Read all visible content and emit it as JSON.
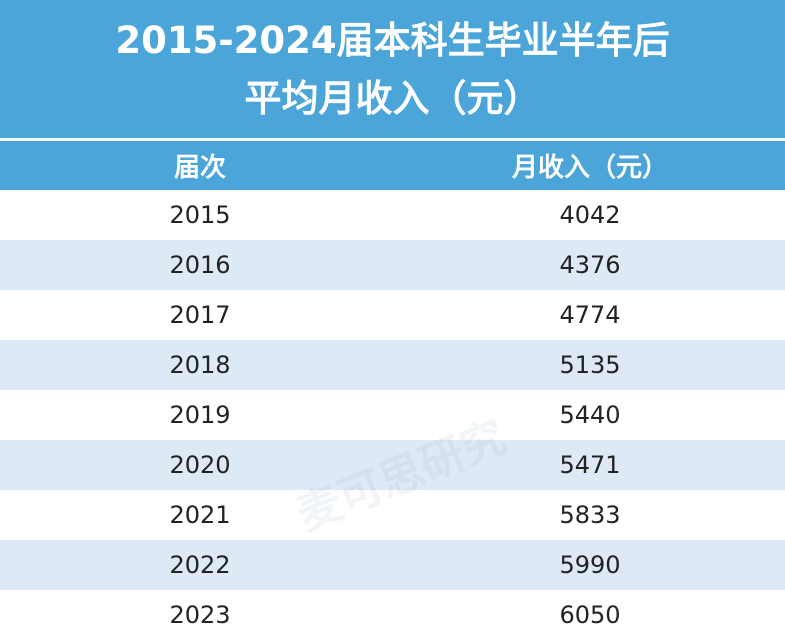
{
  "header": {
    "title_lines": [
      "2015-2024届本科生毕业半年后",
      "平均月收入（元）"
    ]
  },
  "table": {
    "columns": [
      "届次",
      "月收入（元）"
    ],
    "rows": [
      [
        2015,
        4042
      ],
      [
        2016,
        4376
      ],
      [
        2017,
        4774
      ],
      [
        2018,
        5135
      ],
      [
        2019,
        5440
      ],
      [
        2020,
        5471
      ],
      [
        2021,
        5833
      ],
      [
        2022,
        5990
      ],
      [
        2023,
        6050
      ]
    ]
  },
  "watermark": "麦可思研究"
}
